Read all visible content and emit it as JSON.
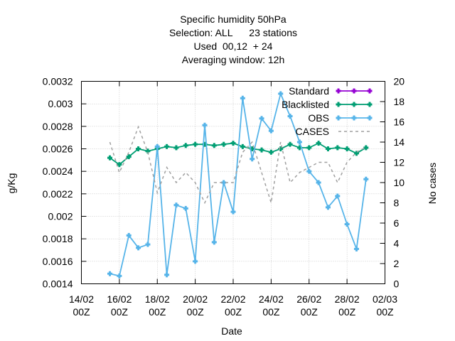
{
  "chart_data": {
    "type": "line",
    "title_lines": [
      "Specific humidity 50hPa",
      "Selection: ALL      23 stations",
      "Used  00,12  + 24",
      "Averaging window: 12h"
    ],
    "xlabel": "Date",
    "ylabel": "g/Kg",
    "y2label": "No cases",
    "x_ticks": [
      {
        "x": 0,
        "l1": "14/02",
        "l2": "00Z"
      },
      {
        "x": 2,
        "l1": "16/02",
        "l2": "00Z"
      },
      {
        "x": 4,
        "l1": "18/02",
        "l2": "00Z"
      },
      {
        "x": 6,
        "l1": "20/02",
        "l2": "00Z"
      },
      {
        "x": 8,
        "l1": "22/02",
        "l2": "00Z"
      },
      {
        "x": 10,
        "l1": "24/02",
        "l2": "00Z"
      },
      {
        "x": 12,
        "l1": "26/02",
        "l2": "00Z"
      },
      {
        "x": 14,
        "l1": "28/02",
        "l2": "00Z"
      },
      {
        "x": 16,
        "l1": "02/03",
        "l2": "00Z"
      }
    ],
    "xlim": [
      0,
      16
    ],
    "ylim": [
      0.0014,
      0.0032
    ],
    "y_ticks": [
      0.0014,
      0.0016,
      0.0018,
      0.002,
      0.0022,
      0.0024,
      0.0026,
      0.0028,
      0.003,
      0.0032
    ],
    "y_tick_labels": [
      "0.0014",
      "0.0016",
      "0.0018",
      "0.002",
      "0.0022",
      "0.0024",
      "0.0026",
      "0.0028",
      "0.003",
      "0.0032"
    ],
    "y2lim": [
      0,
      20
    ],
    "y2_ticks": [
      0,
      2,
      4,
      6,
      8,
      10,
      12,
      14,
      16,
      18,
      20
    ],
    "grid": true,
    "legend_position": "top-right",
    "series": [
      {
        "name": "Standard",
        "axis": "y",
        "color": "#9400d3",
        "style": "line-plus",
        "points": []
      },
      {
        "name": "Blacklisted",
        "axis": "y",
        "color": "#009e73",
        "style": "line-plus",
        "points": [
          [
            1.5,
            0.00252
          ],
          [
            2.0,
            0.00246
          ],
          [
            2.5,
            0.00253
          ],
          [
            3.0,
            0.0026
          ],
          [
            3.5,
            0.00258
          ],
          [
            4.0,
            0.0026
          ],
          [
            4.5,
            0.00262
          ],
          [
            5.0,
            0.00261
          ],
          [
            5.5,
            0.00263
          ],
          [
            6.0,
            0.00264
          ],
          [
            6.5,
            0.00264
          ],
          [
            7.0,
            0.00263
          ],
          [
            7.5,
            0.00264
          ],
          [
            8.0,
            0.00265
          ],
          [
            8.5,
            0.00262
          ],
          [
            9.0,
            0.0026
          ],
          [
            9.5,
            0.00259
          ],
          [
            10.0,
            0.00257
          ],
          [
            10.5,
            0.0026
          ],
          [
            11.0,
            0.00264
          ],
          [
            11.5,
            0.00261
          ],
          [
            12.0,
            0.00261
          ],
          [
            12.5,
            0.00265
          ],
          [
            13.0,
            0.0026
          ],
          [
            13.5,
            0.00261
          ],
          [
            14.0,
            0.0026
          ],
          [
            14.5,
            0.00256
          ],
          [
            15.0,
            0.00261
          ]
        ]
      },
      {
        "name": "OBS",
        "axis": "y",
        "color": "#56b4e9",
        "style": "line-plus",
        "points": [
          [
            1.5,
            0.00149
          ],
          [
            2.0,
            0.00147
          ],
          [
            2.5,
            0.00183
          ],
          [
            3.0,
            0.00172
          ],
          [
            3.5,
            0.00175
          ],
          [
            4.0,
            0.00262
          ],
          [
            4.5,
            0.00148
          ],
          [
            5.0,
            0.0021
          ],
          [
            5.5,
            0.00207
          ],
          [
            6.0,
            0.0016
          ],
          [
            6.5,
            0.00281
          ],
          [
            7.0,
            0.00177
          ],
          [
            7.5,
            0.0023
          ],
          [
            8.0,
            0.00204
          ],
          [
            8.5,
            0.00305
          ],
          [
            9.0,
            0.00251
          ],
          [
            9.5,
            0.00287
          ],
          [
            10.0,
            0.00276
          ],
          [
            10.5,
            0.00309
          ],
          [
            11.0,
            0.00289
          ],
          [
            11.5,
            0.00266
          ],
          [
            12.0,
            0.0024
          ],
          [
            12.5,
            0.0023
          ],
          [
            13.0,
            0.00208
          ],
          [
            13.5,
            0.00218
          ],
          [
            14.0,
            0.00193
          ],
          [
            14.5,
            0.00171
          ],
          [
            15.0,
            0.00233
          ]
        ]
      },
      {
        "name": "CASES",
        "axis": "y2",
        "color": "#a0a0a0",
        "style": "dashed",
        "points": [
          [
            1.5,
            14
          ],
          [
            2.0,
            11
          ],
          [
            2.5,
            13
          ],
          [
            3.0,
            15.5
          ],
          [
            3.5,
            13
          ],
          [
            4.0,
            9
          ],
          [
            4.5,
            11.5
          ],
          [
            5.0,
            10
          ],
          [
            5.5,
            11
          ],
          [
            6.0,
            10
          ],
          [
            6.5,
            8
          ],
          [
            7.0,
            10
          ],
          [
            7.5,
            10
          ],
          [
            8.0,
            10
          ],
          [
            8.5,
            13
          ],
          [
            9.0,
            14
          ],
          [
            9.5,
            11
          ],
          [
            10.0,
            8
          ],
          [
            10.5,
            14
          ],
          [
            11.0,
            10
          ],
          [
            11.5,
            11
          ],
          [
            12.0,
            11.5
          ],
          [
            12.5,
            12
          ],
          [
            13.0,
            12
          ],
          [
            13.5,
            10
          ],
          [
            14.0,
            12
          ],
          [
            14.5,
            13
          ],
          [
            15.0,
            13.5
          ]
        ]
      }
    ]
  }
}
